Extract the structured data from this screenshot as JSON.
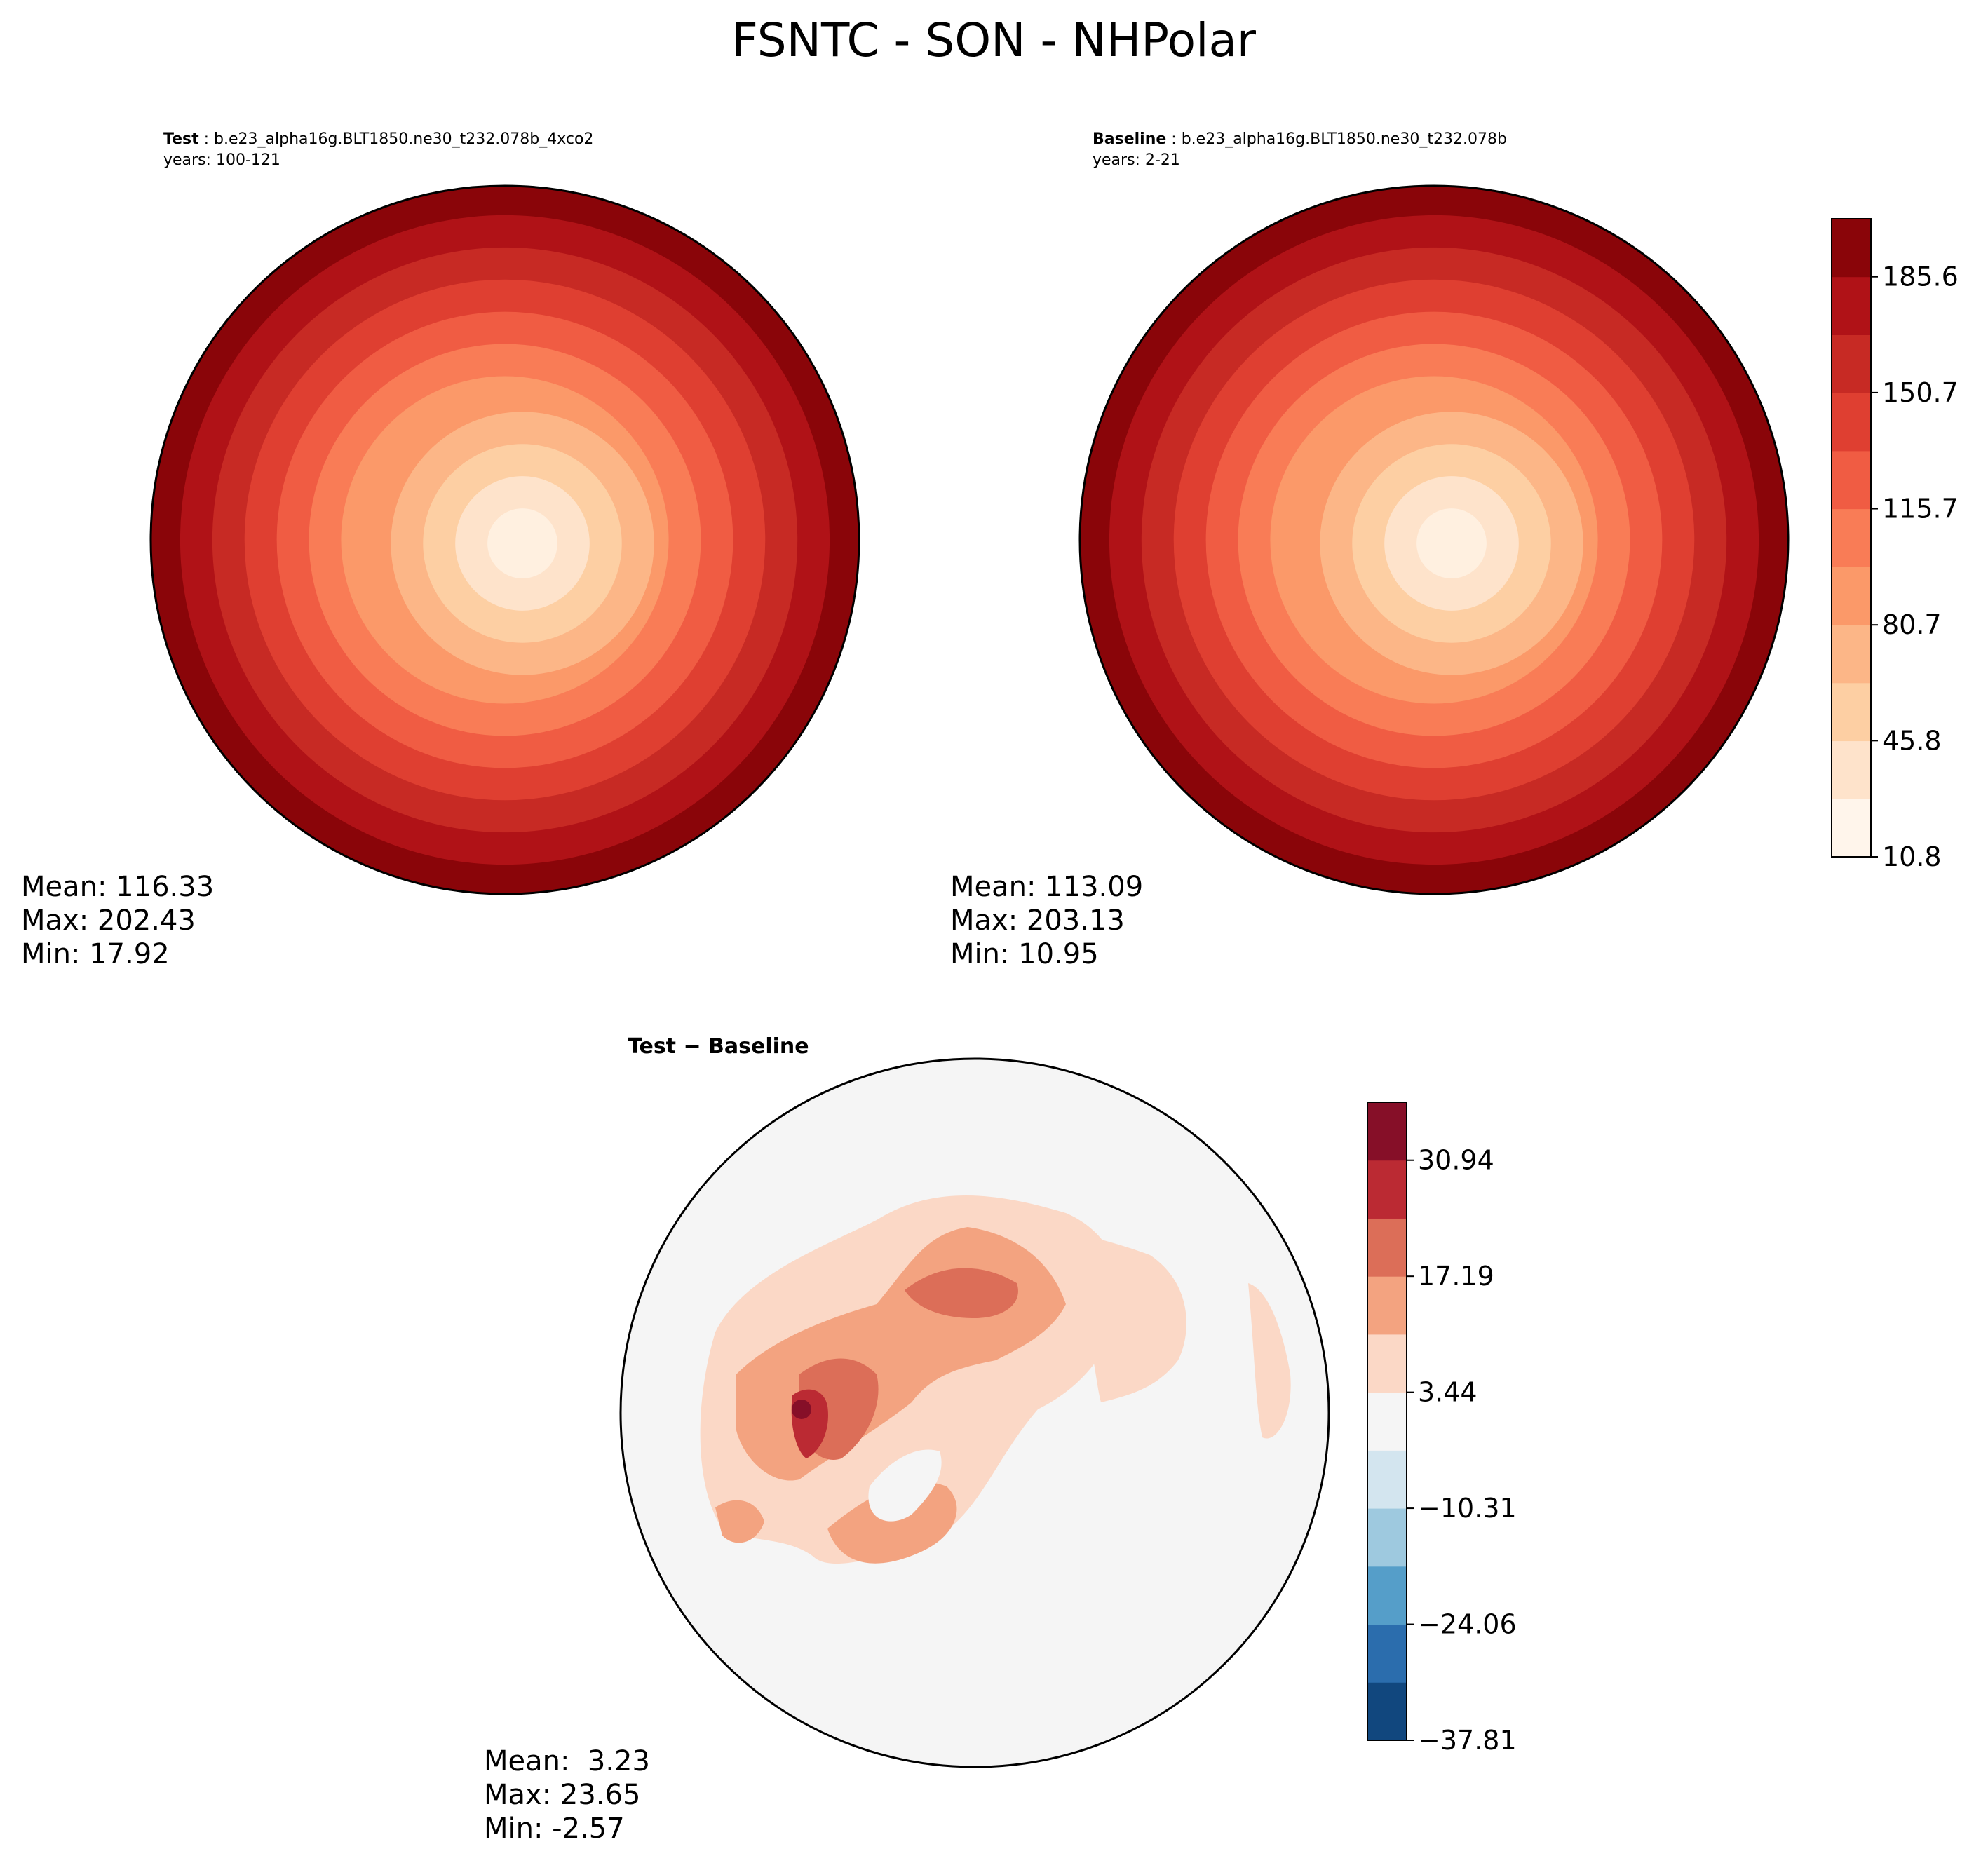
{
  "chart_data": [
    {
      "type": "heatmap",
      "projection": "north-polar-stereographic",
      "panel": "test",
      "title": "FSNTC - SON - NHPolar",
      "header_label": "Test",
      "header_case": "b.e23_alpha16g.BLT1850.ne30_t232.078b_4xco2",
      "header_years": "years: 100-121",
      "stats": [
        "Mean: 116.33",
        "Max: 202.43",
        "Min: 17.92"
      ],
      "stats_values": {
        "mean": 116.33,
        "max": 202.43,
        "min": 17.92
      },
      "levels": [
        10.8,
        28.3,
        45.8,
        63.2,
        80.7,
        98.2,
        115.7,
        133.2,
        150.7,
        168.1,
        185.6,
        203.1
      ],
      "colorscale": "Reds"
    },
    {
      "type": "heatmap",
      "projection": "north-polar-stereographic",
      "panel": "baseline",
      "header_label": "Baseline",
      "header_case": "b.e23_alpha16g.BLT1850.ne30_t232.078b",
      "header_years": "years: 2-21",
      "stats": [
        "Mean: 113.09",
        "Max: 203.13",
        "Min: 10.95"
      ],
      "stats_values": {
        "mean": 113.09,
        "max": 203.13,
        "min": 10.95
      },
      "colorbar": {
        "tick_labels": [
          "185.6",
          "150.7",
          "115.7",
          "80.7",
          "45.8",
          "10.8"
        ],
        "ticks": [
          185.6,
          150.7,
          115.7,
          80.7,
          45.8,
          10.8
        ],
        "colors": [
          "#fff5eb",
          "#fee3cb",
          "#fdcfa3",
          "#fcb687",
          "#fb9969",
          "#f97c56",
          "#f05c43",
          "#df3f31",
          "#c72a24",
          "#b01217",
          "#8a0509"
        ]
      }
    },
    {
      "type": "heatmap",
      "projection": "north-polar-stereographic",
      "panel": "difference",
      "header": "Test − Baseline",
      "stats": [
        "Mean:  3.23",
        "Max: 23.65",
        "Min: -2.57"
      ],
      "stats_values": {
        "mean": 3.23,
        "max": 23.65,
        "min": -2.57
      },
      "colorbar": {
        "tick_labels": [
          "30.94",
          "17.19",
          "3.44",
          "−10.31",
          "−24.06",
          "−37.81"
        ],
        "ticks": [
          30.94,
          17.19,
          3.44,
          -10.31,
          -24.06,
          -37.81
        ],
        "colors": [
          "#11477e",
          "#2b6dad",
          "#559ec9",
          "#9ec9df",
          "#d3e5ef",
          "#f5f5f5",
          "#fbd8c6",
          "#f3a380",
          "#dc6e58",
          "#bb2a33",
          "#860f28"
        ]
      }
    }
  ],
  "colors": {
    "test_rings": [
      "#8a0509",
      "#b01217",
      "#c72a24",
      "#df3f31",
      "#f05c43",
      "#f97c56",
      "#fb9969",
      "#fcb687",
      "#fdcfa3",
      "#fee3cb",
      "#fff0e0"
    ],
    "diff_background": "#f5f5f5",
    "diff_light": "#fbd8c6",
    "diff_mid": "#f3a380",
    "diff_high": "#dc6e58",
    "diff_top": "#bb2a33",
    "diff_max": "#860f28",
    "coast": "#000000"
  }
}
